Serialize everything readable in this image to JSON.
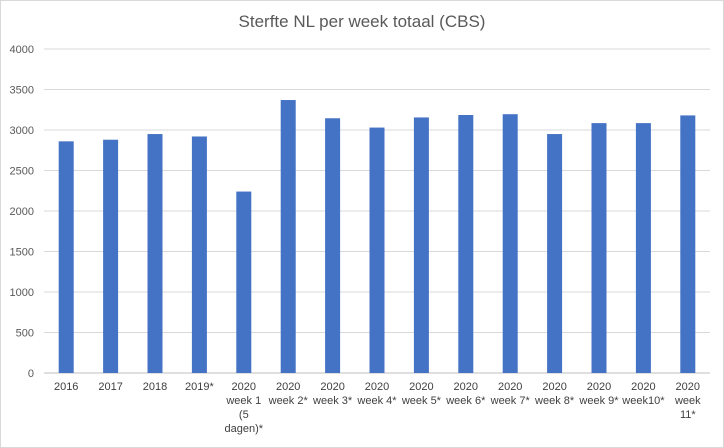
{
  "chart_data": {
    "type": "bar",
    "title": "Sterfte NL per week totaal  (CBS)",
    "xlabel": "",
    "ylabel": "",
    "ylim": [
      0,
      4000
    ],
    "yticks": [
      0,
      500,
      1000,
      1500,
      2000,
      2500,
      3000,
      3500,
      4000
    ],
    "grid": true,
    "bar_color": "#4472c4",
    "categories": [
      "2016",
      "2017",
      "2018",
      "2019*",
      "2020 week 1 (5 dagen)*",
      "2020 week 2*",
      "2020 week 3*",
      "2020 week 4*",
      "2020 week 5*",
      "2020 week 6*",
      "2020 week 7*",
      "2020 week 8*",
      "2020 week 9*",
      "2020 week10*",
      "2020 week 11*"
    ],
    "category_lines": [
      [
        "2016"
      ],
      [
        "2017"
      ],
      [
        "2018"
      ],
      [
        "2019*"
      ],
      [
        "2020",
        "week 1",
        "(5",
        "dagen)*"
      ],
      [
        "2020",
        "week 2*"
      ],
      [
        "2020",
        "week 3*"
      ],
      [
        "2020",
        "week 4*"
      ],
      [
        "2020",
        "week 5*"
      ],
      [
        "2020",
        "week 6*"
      ],
      [
        "2020",
        "week 7*"
      ],
      [
        "2020",
        "week 8*"
      ],
      [
        "2020",
        "week 9*"
      ],
      [
        "2020",
        "week10*"
      ],
      [
        "2020",
        "week",
        "11*"
      ]
    ],
    "values": [
      2860,
      2880,
      2950,
      2920,
      2240,
      3370,
      3145,
      3030,
      3155,
      3185,
      3195,
      2950,
      3085,
      3085,
      3180
    ]
  }
}
